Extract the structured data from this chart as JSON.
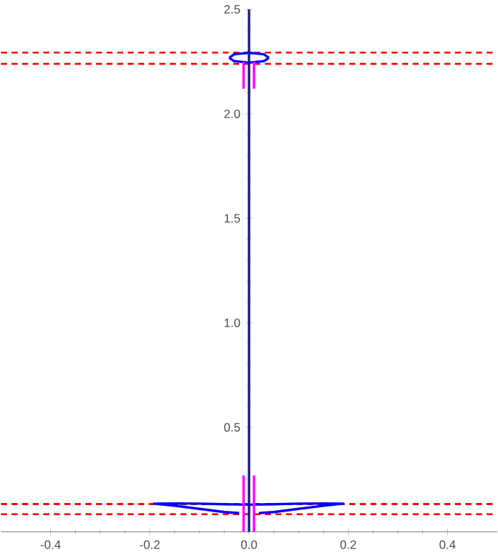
{
  "chart_data": {
    "type": "line",
    "xlim": [
      -0.5,
      0.5
    ],
    "ylim": [
      0,
      2.5
    ],
    "xticks": [
      {
        "value": -0.4,
        "label": "-0.4"
      },
      {
        "value": -0.2,
        "label": "-0.2"
      },
      {
        "value": 0,
        "label": "0.0"
      },
      {
        "value": 0.2,
        "label": "0.2"
      },
      {
        "value": 0.4,
        "label": "0.4"
      }
    ],
    "yticks": [
      {
        "value": 0.5,
        "label": "0.5"
      },
      {
        "value": 1,
        "label": "1.0"
      },
      {
        "value": 1.5,
        "label": "1.5"
      },
      {
        "value": 2,
        "label": "2.0"
      },
      {
        "value": 2.5,
        "label": "2.5"
      }
    ],
    "grid": false,
    "series": [
      {
        "color": "#1a1a80",
        "x": [
          0,
          0
        ],
        "values": [
          0,
          2.5
        ]
      },
      {
        "color": "#0000ff",
        "x": [
          -0.193,
          -0.15,
          -0.1,
          -0.05,
          0,
          0.05,
          0.1,
          0.15,
          0.19,
          0.15,
          0.1,
          0.05,
          0.02,
          null,
          -0.02,
          -0.05,
          -0.1,
          -0.15,
          -0.193
        ],
        "values": [
          0.135,
          0.136,
          0.135,
          0.132,
          0.13,
          0.132,
          0.135,
          0.136,
          0.135,
          0.125,
          0.11,
          0.095,
          0.09,
          null,
          0.09,
          0.095,
          0.11,
          0.125,
          0.135
        ]
      },
      {
        "color": "#0000ff",
        "x": [
          -0.04,
          -0.03,
          0,
          0.03,
          0.04
        ],
        "values": [
          2.268,
          2.285,
          2.292,
          2.285,
          2.268
        ]
      },
      {
        "color": "#0000ff",
        "x": [
          -0.04,
          -0.03,
          0,
          0.03,
          0.04
        ],
        "values": [
          2.268,
          2.252,
          2.245,
          2.252,
          2.268
        ]
      },
      {
        "color": "#ff00ff",
        "x": [
          -0.011,
          -0.011
        ],
        "values": [
          0,
          0.27
        ]
      },
      {
        "color": "#ff00ff",
        "x": [
          0.01,
          0.01
        ],
        "values": [
          0,
          0.27
        ]
      },
      {
        "color": "#ff00ff",
        "x": [
          -0.011,
          -0.011
        ],
        "values": [
          2.12,
          2.25
        ]
      },
      {
        "color": "#ff00ff",
        "x": [
          0.01,
          0.01
        ],
        "values": [
          2.12,
          2.25
        ]
      }
    ],
    "ref_lines": [
      {
        "axis": "y",
        "value": 2.293,
        "color": "#ff0000",
        "line_style": "dashed"
      },
      {
        "axis": "y",
        "value": 2.239,
        "color": "#ff0000",
        "line_style": "dashed"
      },
      {
        "axis": "y",
        "value": 0.133,
        "color": "#ff0000",
        "line_style": "dashed"
      },
      {
        "axis": "y",
        "value": 0.084,
        "color": "#ff0000",
        "line_style": "dashed"
      }
    ]
  }
}
